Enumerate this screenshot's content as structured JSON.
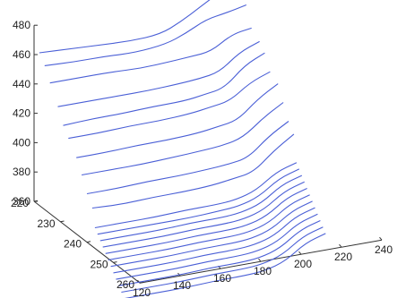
{
  "chart_data": {
    "type": "line",
    "projection": "3d",
    "title": "",
    "xlabel": "",
    "ylabel": "",
    "zlabel": "",
    "grid": false,
    "line_color": "#4a5fd6",
    "z_axis": {
      "ticks": [
        360,
        380,
        400,
        420,
        440,
        460,
        480
      ],
      "labels": [
        "360",
        "380",
        "400",
        "420",
        "440",
        "460",
        "480"
      ],
      "range": [
        360,
        480
      ]
    },
    "depth_axis": {
      "ticks": [
        220,
        230,
        240,
        250,
        260
      ],
      "labels": [
        "220",
        "230",
        "240",
        "250",
        "260"
      ],
      "range": [
        220,
        260
      ]
    },
    "x_axis": {
      "ticks": [
        120,
        140,
        160,
        180,
        200,
        220,
        240
      ],
      "labels": [
        "120",
        "140",
        "160",
        "180",
        "200",
        "220",
        "240"
      ],
      "range": [
        120,
        240
      ]
    },
    "series": [
      {
        "y": 222,
        "x": [
          120,
          135,
          150,
          165,
          180,
          190,
          200,
          210,
          220
        ],
        "z": [
          464,
          463,
          462,
          461,
          462,
          468,
          476,
          484,
          488
        ]
      },
      {
        "y": 224,
        "x": [
          120,
          135,
          150,
          165,
          180,
          190,
          200,
          210,
          220
        ],
        "z": [
          458,
          457,
          457,
          456,
          458,
          463,
          470,
          472,
          475
        ]
      },
      {
        "y": 226,
        "x": [
          120,
          135,
          150,
          165,
          180,
          190,
          200,
          210,
          220
        ],
        "z": [
          449,
          449,
          449,
          448,
          449,
          450,
          451,
          460,
          462
        ]
      },
      {
        "y": 229,
        "x": [
          120,
          135,
          150,
          165,
          180,
          190,
          200,
          210,
          220
        ],
        "z": [
          437,
          437,
          437,
          437,
          438,
          439,
          441,
          452,
          457
        ]
      },
      {
        "y": 231,
        "x": [
          120,
          135,
          150,
          165,
          180,
          190,
          200,
          210,
          220
        ],
        "z": [
          427,
          428,
          428,
          429,
          429,
          431,
          433,
          446,
          452
        ]
      },
      {
        "y": 233,
        "x": [
          120,
          135,
          150,
          165,
          180,
          190,
          200,
          210,
          220
        ],
        "z": [
          421,
          421,
          422,
          422,
          423,
          425,
          427,
          437,
          442
        ]
      },
      {
        "y": 236,
        "x": [
          120,
          135,
          150,
          165,
          180,
          190,
          200,
          210,
          220
        ],
        "z": [
          412,
          412,
          413,
          413,
          414,
          416,
          418,
          430,
          438
        ]
      },
      {
        "y": 238,
        "x": [
          120,
          135,
          150,
          165,
          180,
          190,
          200,
          210,
          220
        ],
        "z": [
          403,
          403,
          403,
          404,
          405,
          406,
          409,
          420,
          428
        ]
      },
      {
        "y": 240,
        "x": [
          120,
          135,
          150,
          165,
          180,
          190,
          200,
          210,
          220
        ],
        "z": [
          393,
          393,
          394,
          394,
          395,
          396,
          398,
          410,
          418
        ]
      },
      {
        "y": 242,
        "x": [
          120,
          135,
          150,
          165,
          180,
          190,
          200,
          210,
          220
        ],
        "z": [
          386,
          385,
          386,
          386,
          387,
          389,
          391,
          403,
          412
        ]
      },
      {
        "y": 243,
        "x": [
          120,
          135,
          150,
          165,
          180,
          190,
          200,
          210,
          220
        ],
        "z": [
          374,
          374,
          374,
          375,
          375,
          376,
          380,
          390,
          394
        ]
      },
      {
        "y": 244,
        "x": [
          120,
          135,
          150,
          165,
          180,
          190,
          200,
          210,
          220
        ],
        "z": [
          371,
          371,
          371,
          371,
          372,
          373,
          377,
          387,
          391
        ]
      },
      {
        "y": 245,
        "x": [
          120,
          135,
          150,
          165,
          180,
          190,
          200,
          210,
          220
        ],
        "z": [
          368,
          368,
          368,
          369,
          369,
          370,
          374,
          384,
          388
        ]
      },
      {
        "y": 246,
        "x": [
          120,
          135,
          150,
          165,
          180,
          190,
          200,
          210,
          220
        ],
        "z": [
          365,
          365,
          365,
          366,
          366,
          367,
          371,
          381,
          385
        ]
      },
      {
        "y": 247,
        "x": [
          120,
          135,
          150,
          165,
          180,
          190,
          200,
          210,
          220
        ],
        "z": [
          362,
          362,
          362,
          363,
          363,
          364,
          368,
          378,
          382
        ]
      },
      {
        "y": 248,
        "x": [
          120,
          135,
          150,
          165,
          180,
          190,
          200,
          210,
          220
        ],
        "z": [
          359,
          359,
          359,
          360,
          360,
          361,
          365,
          375,
          379
        ]
      },
      {
        "y": 249,
        "x": [
          120,
          135,
          150,
          165,
          180,
          190,
          200,
          210,
          220
        ],
        "z": [
          356,
          356,
          356,
          357,
          357,
          358,
          362,
          372,
          376
        ]
      },
      {
        "y": 250,
        "x": [
          120,
          135,
          150,
          165,
          180,
          190,
          200,
          210,
          220
        ],
        "z": [
          353,
          353,
          353,
          354,
          354,
          355,
          359,
          369,
          373
        ]
      },
      {
        "y": 251,
        "x": [
          120,
          135,
          150,
          165,
          180,
          190,
          200,
          210,
          220
        ],
        "z": [
          350,
          350,
          350,
          351,
          351,
          352,
          356,
          366,
          370
        ]
      },
      {
        "y": 252,
        "x": [
          120,
          135,
          150,
          165,
          180,
          190,
          200,
          210,
          220
        ],
        "z": [
          347,
          347,
          347,
          348,
          348,
          349,
          353,
          363,
          367
        ]
      },
      {
        "y": 253,
        "x": [
          120,
          135,
          150,
          165,
          180,
          190,
          200,
          210,
          220
        ],
        "z": [
          344,
          344,
          344,
          345,
          345,
          346,
          350,
          360,
          364
        ]
      },
      {
        "y": 254,
        "x": [
          120,
          135,
          150,
          165,
          180,
          190,
          200,
          210,
          220
        ],
        "z": [
          341,
          341,
          341,
          342,
          342,
          343,
          347,
          357,
          361
        ]
      }
    ]
  }
}
